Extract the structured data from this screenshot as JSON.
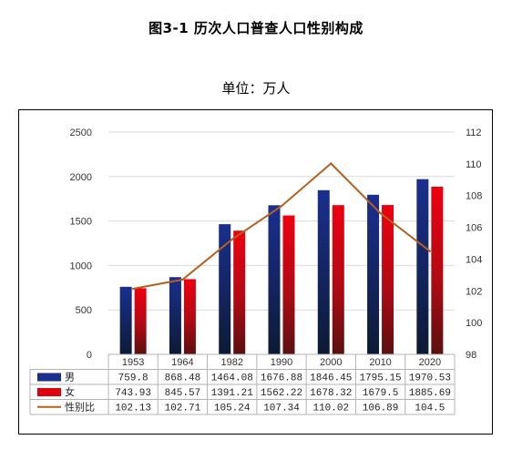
{
  "title": "图3-1   历次人口普查人口性别构成",
  "unit_label": "单位：万人",
  "chart_data": {
    "type": "bar",
    "categories": [
      "1953",
      "1964",
      "1982",
      "1990",
      "2000",
      "2010",
      "2020"
    ],
    "series": [
      {
        "name": "男",
        "type": "bar",
        "axis": "left",
        "color": "#1a2f8f",
        "values": [
          759.8,
          868.48,
          1464.08,
          1676.88,
          1846.45,
          1795.15,
          1970.53
        ],
        "labels": [
          "759.8",
          "868.48",
          "1464.08",
          "1676.88",
          "1846.45",
          "1795.15",
          "1970.53"
        ]
      },
      {
        "name": "女",
        "type": "bar",
        "axis": "left",
        "color": "#e0000e",
        "values": [
          743.93,
          845.57,
          1391.21,
          1562.22,
          1678.32,
          1679.5,
          1885.69
        ],
        "labels": [
          "743.93",
          "845.57",
          "1391.21",
          "1562.22",
          "1678.32",
          "1679.5",
          "1885.69"
        ]
      },
      {
        "name": "性别比",
        "type": "line",
        "axis": "right",
        "color": "#b5601c",
        "values": [
          102.13,
          102.71,
          105.24,
          107.34,
          110.02,
          106.89,
          104.5
        ],
        "labels": [
          "102.13",
          "102.71",
          "105.24",
          "107.34",
          "110.02",
          "106.89",
          "104.5"
        ]
      }
    ],
    "y_left": {
      "min": 0,
      "max": 2500,
      "ticks": [
        "0",
        "500",
        "1000",
        "1500",
        "2000",
        "2500"
      ]
    },
    "y_right": {
      "min": 98,
      "max": 112,
      "ticks": [
        "98",
        "100",
        "102",
        "104",
        "106",
        "108",
        "110",
        "112"
      ]
    },
    "grid": true,
    "legend": "data-table"
  }
}
